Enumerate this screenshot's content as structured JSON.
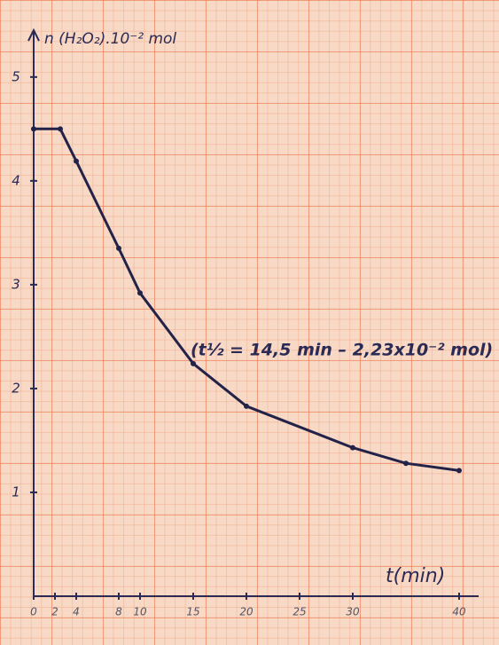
{
  "chart_data": {
    "type": "line",
    "y_label": "n (H₂O₂).10⁻² mol",
    "x_label": "t(min)",
    "annotation": "(t½ = 14,5 min – 2,23x10⁻² mol)",
    "xlim": [
      0,
      40
    ],
    "xticks": [
      0,
      2,
      4,
      8,
      10,
      15,
      20,
      25,
      30,
      40
    ],
    "ylim": [
      0,
      5.4
    ],
    "yticks": [
      1,
      2,
      3,
      4,
      5
    ],
    "series": [
      {
        "color": "#23234a",
        "x": [
          0,
          2.5,
          4,
          8,
          10,
          15,
          20,
          30,
          35,
          40
        ],
        "values": [
          4.5,
          4.5,
          4.19,
          3.35,
          2.92,
          2.24,
          1.83,
          1.43,
          1.28,
          1.21
        ]
      }
    ]
  }
}
